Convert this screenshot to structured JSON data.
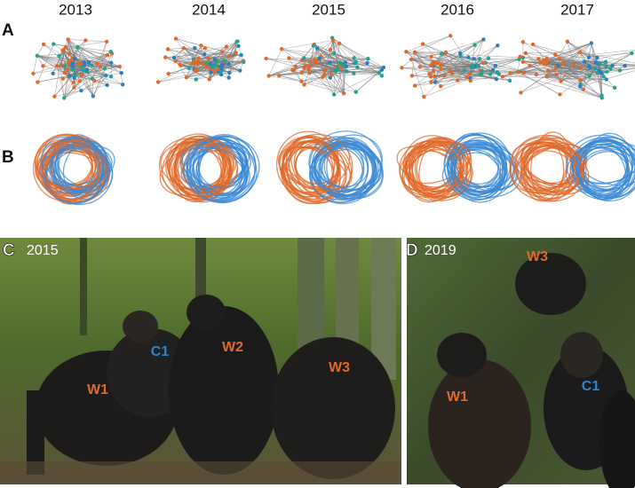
{
  "years": [
    "2013",
    "2014",
    "2015",
    "2016",
    "2017"
  ],
  "rows": [
    {
      "label": "A"
    },
    {
      "label": "B"
    }
  ],
  "photos": [
    {
      "label": "C",
      "year": "2015",
      "individuals": [
        {
          "name": "C1",
          "color": "#2a86d1"
        },
        {
          "name": "W1",
          "color": "#e0692a"
        },
        {
          "name": "W2",
          "color": "#e0692a"
        },
        {
          "name": "W3",
          "color": "#e0692a"
        }
      ]
    },
    {
      "label": "D",
      "year": "2019",
      "individuals": [
        {
          "name": "W3",
          "color": "#e0692a"
        },
        {
          "name": "W1",
          "color": "#e0692a"
        },
        {
          "name": "C1",
          "color": "#2a86d1"
        }
      ]
    }
  ]
}
